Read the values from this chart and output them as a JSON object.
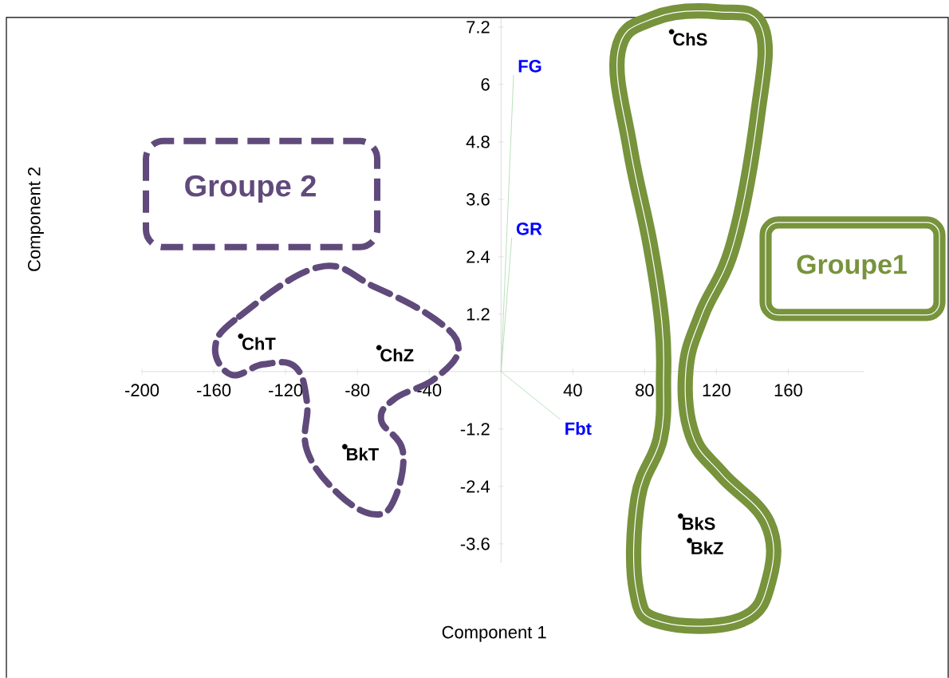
{
  "chart_data": {
    "type": "scatter",
    "xlabel": "Component 1",
    "ylabel": "Component 2",
    "xlim": [
      -200,
      202
    ],
    "ylim": [
      -4,
      7.4
    ],
    "xticks": [
      -200,
      -160,
      -120,
      -80,
      -40,
      40,
      80,
      120,
      160
    ],
    "yticks": [
      -3.6,
      -2.4,
      -1.2,
      1.2,
      2.4,
      3.6,
      4.8,
      6,
      7.2
    ],
    "grid": false,
    "series": [
      {
        "name": "ChS",
        "color": "#000000",
        "x": [
          95
        ],
        "values": [
          7.1
        ]
      },
      {
        "name": "ChT",
        "color": "#000000",
        "x": [
          -145
        ],
        "values": [
          0.74
        ]
      },
      {
        "name": "ChZ",
        "color": "#000000",
        "x": [
          -68
        ],
        "values": [
          0.5
        ]
      },
      {
        "name": "BkT",
        "color": "#000000",
        "x": [
          -87
        ],
        "values": [
          -1.57
        ]
      },
      {
        "name": "BkS",
        "color": "#000000",
        "x": [
          100
        ],
        "values": [
          -3.02
        ]
      },
      {
        "name": "BkZ",
        "color": "#000000",
        "x": [
          105
        ],
        "values": [
          -3.53
        ]
      },
      {
        "type": "line",
        "name": "FG",
        "color": "#a8d8a8",
        "x": [
          0,
          7
        ],
        "values": [
          0,
          6.2
        ]
      },
      {
        "type": "line",
        "name": "GR",
        "color": "#a8d8a8",
        "x": [
          0,
          6
        ],
        "values": [
          0,
          2.8
        ]
      },
      {
        "type": "line",
        "name": "Fbt",
        "color": "#a8d8a8",
        "x": [
          0,
          33
        ],
        "values": [
          0,
          -1.0
        ]
      }
    ],
    "annotations": [
      "Groupe 2",
      "Groupe1"
    ]
  }
}
